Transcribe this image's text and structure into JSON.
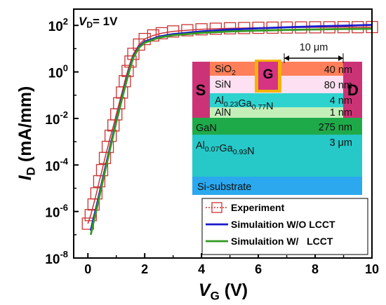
{
  "chart_data": {
    "type": "line",
    "annotation": "V_D= 1V",
    "xlabel": "V_G (V)",
    "ylabel": "I_D (mA/mm)",
    "xlim": [
      -0.5,
      10
    ],
    "ylim_log10": [
      -8,
      2.7
    ],
    "yscale": "log",
    "x_ticks": [
      0,
      2,
      4,
      6,
      8,
      10
    ],
    "x_tick_labels": [
      "0",
      "2",
      "4",
      "6",
      "8",
      "10"
    ],
    "y_ticks_log10": [
      -8,
      -6,
      -4,
      -2,
      0,
      2
    ],
    "y_tick_labels": [
      {
        "base": "10",
        "exp": "-8"
      },
      {
        "base": "10",
        "exp": "-6"
      },
      {
        "base": "10",
        "exp": "-4"
      },
      {
        "base": "10",
        "exp": "-2"
      },
      {
        "base": "10",
        "exp": "0"
      },
      {
        "base": "10",
        "exp": "2"
      }
    ],
    "grid": false,
    "legend": "bottom-right",
    "series": [
      {
        "name": "Experiment",
        "style": "line-with-open-squares",
        "color": "#cc3333",
        "x": [
          0,
          0.1,
          0.2,
          0.3,
          0.4,
          0.5,
          0.6,
          0.7,
          0.8,
          0.9,
          1.0,
          1.1,
          1.2,
          1.3,
          1.4,
          1.5,
          1.6,
          1.8,
          2.0,
          2.3,
          2.6,
          3.0,
          3.5,
          4.0,
          4.5,
          5.0,
          5.5,
          6.0,
          6.5,
          7.0,
          7.5,
          8.0,
          8.5,
          9.0,
          9.5,
          10.0
        ],
        "y": [
          3e-07,
          7e-07,
          2e-06,
          6e-06,
          2e-05,
          6e-05,
          0.0002,
          0.0006,
          0.0018,
          0.005,
          0.015,
          0.045,
          0.13,
          0.4,
          1.1,
          2.8,
          6,
          15,
          26,
          37,
          46,
          55,
          62,
          68,
          72,
          75,
          77,
          79,
          80,
          81,
          82,
          83,
          83,
          84,
          84,
          85
        ]
      },
      {
        "name": "Simulaition W/O LCCT",
        "color": "#1a1acc",
        "x": [
          0.1,
          0.2,
          0.3,
          0.4,
          0.5,
          0.6,
          0.7,
          0.8,
          0.9,
          1.0,
          1.1,
          1.2,
          1.3,
          1.4,
          1.5,
          1.6,
          1.8,
          2.0,
          2.5,
          3.0,
          4.0,
          5.0,
          6.0,
          7.0,
          8.0,
          9.0,
          10.0
        ],
        "y": [
          1.5e-07,
          5e-07,
          1.6e-06,
          5.5e-06,
          1.9e-05,
          6.5e-05,
          0.00022,
          0.00075,
          0.0025,
          0.008,
          0.025,
          0.08,
          0.24,
          0.7,
          1.9,
          4.5,
          12,
          20,
          33,
          42,
          55,
          66,
          75,
          83,
          90,
          97,
          105
        ]
      },
      {
        "name": "Simulaition W/   LCCT",
        "color": "#339922",
        "x": [
          0.1,
          0.2,
          0.3,
          0.4,
          0.5,
          0.6,
          0.7,
          0.8,
          0.9,
          1.0,
          1.1,
          1.2,
          1.3,
          1.4,
          1.5,
          1.6,
          1.8,
          2.0,
          2.5,
          3.0,
          4.0,
          5.0,
          6.0,
          7.0,
          8.0,
          9.0,
          10.0
        ],
        "y": [
          1e-07,
          3.5e-07,
          1.2e-06,
          4.2e-06,
          1.5e-05,
          5.2e-05,
          0.00018,
          0.00062,
          0.0021,
          0.007,
          0.022,
          0.07,
          0.21,
          0.62,
          1.7,
          4.1,
          11,
          18,
          30,
          38,
          48,
          55,
          60,
          64,
          67,
          70,
          72
        ]
      }
    ]
  },
  "inset": {
    "scale_label": "10 μm",
    "source_label": "S",
    "gate_label": "G",
    "drain_label": "D",
    "layers": [
      {
        "name_parts": [
          {
            "t": "SiO"
          },
          {
            "t": "2",
            "sub": true
          }
        ],
        "thickness": "40 nm",
        "color": "#ff7f5a"
      },
      {
        "name_parts": [
          {
            "t": "SiN"
          }
        ],
        "thickness": "80 nm",
        "color": "#fde0f2"
      },
      {
        "name_parts": [
          {
            "t": "Al"
          },
          {
            "t": "0.23",
            "sub": true
          },
          {
            "t": "Ga"
          },
          {
            "t": "0.77",
            "sub": true
          },
          {
            "t": "N"
          }
        ],
        "thickness": "4 nm",
        "color": "#2ed3d0"
      },
      {
        "name_parts": [
          {
            "t": "AlN"
          }
        ],
        "thickness": "1 nm",
        "color": "#c5efb9"
      },
      {
        "name_parts": [
          {
            "t": "GaN"
          }
        ],
        "thickness": "275 nm",
        "color": "#1faa4a"
      },
      {
        "name_parts": [
          {
            "t": "Al"
          },
          {
            "t": "0.07",
            "sub": true
          },
          {
            "t": "Ga"
          },
          {
            "t": "0.93",
            "sub": true
          },
          {
            "t": "N"
          }
        ],
        "thickness": "3 μm",
        "color": "#27c8c8"
      },
      {
        "name_parts": [
          {
            "t": "Si-substrate"
          }
        ],
        "thickness": "",
        "color": "#2ba8ee"
      }
    ],
    "contact_color": "#cc3377",
    "gate_color": "#d63384",
    "gate_outline": "#f4b400"
  }
}
